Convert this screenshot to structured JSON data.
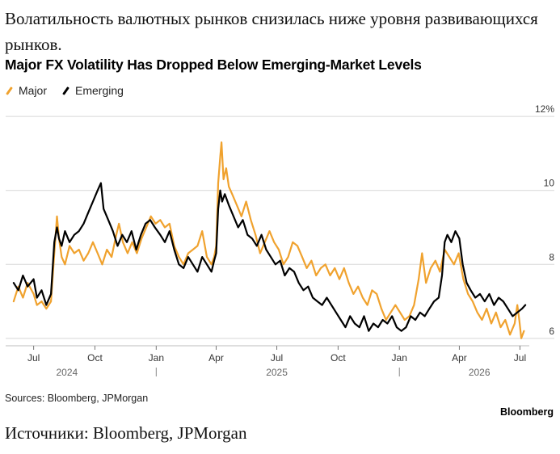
{
  "header": {
    "ru_title": "Волатильность валютных рынков снизилась ниже уровня развивающихся рынков.",
    "en_title": "Major FX Volatility Has Dropped Below Emerging-Market Levels"
  },
  "footer": {
    "sources": "Sources: Bloomberg, JPMorgan",
    "brand": "Bloomberg",
    "ru_sources": "Источники: Bloomberg, JPMorgan"
  },
  "colors": {
    "major": "#f0a22e",
    "emerging": "#000000",
    "grid": "#d7d7d7",
    "tick": "#333333"
  },
  "chart_data": {
    "type": "line",
    "title": "Major FX Volatility Has Dropped Below Emerging-Market Levels",
    "legend_position": "top-left",
    "grid": true,
    "y_unit": "%",
    "ylim": [
      5.8,
      12.2
    ],
    "xlim": [
      "2024-05-20",
      "2026-07-15"
    ],
    "y_ticks": [
      {
        "value": 6,
        "label": "6"
      },
      {
        "value": 8,
        "label": "8"
      },
      {
        "value": 10,
        "label": "10"
      },
      {
        "value": 12,
        "label": "12%"
      }
    ],
    "x_ticks": [
      {
        "date": "2024-07-01",
        "label": "Jul"
      },
      {
        "date": "2024-10-01",
        "label": "Oct"
      },
      {
        "date": "2025-01-01",
        "label": "Jan"
      },
      {
        "date": "2025-04-01",
        "label": "Apr"
      },
      {
        "date": "2025-07-01",
        "label": "Jul"
      },
      {
        "date": "2025-10-01",
        "label": "Oct"
      },
      {
        "date": "2026-01-01",
        "label": "Jan"
      },
      {
        "date": "2026-04-01",
        "label": "Apr"
      },
      {
        "date": "2026-07-01",
        "label": "Jul"
      }
    ],
    "year_labels": [
      {
        "date": "2024-08-20",
        "label": "2024"
      },
      {
        "date": "2025-07-01",
        "label": "2025"
      },
      {
        "date": "2026-05-01",
        "label": "2026"
      }
    ],
    "year_separators": [
      "2025-01-01",
      "2026-01-01"
    ],
    "series": [
      {
        "name": "Major",
        "color": "#f0a22e",
        "points": [
          [
            "2024-06-01",
            7.0
          ],
          [
            "2024-06-08",
            7.4
          ],
          [
            "2024-06-15",
            7.1
          ],
          [
            "2024-06-22",
            7.5
          ],
          [
            "2024-07-01",
            7.2
          ],
          [
            "2024-07-06",
            6.9
          ],
          [
            "2024-07-13",
            7.0
          ],
          [
            "2024-07-20",
            6.8
          ],
          [
            "2024-07-27",
            7.0
          ],
          [
            "2024-08-01",
            8.3
          ],
          [
            "2024-08-05",
            9.3
          ],
          [
            "2024-08-08",
            8.7
          ],
          [
            "2024-08-12",
            8.2
          ],
          [
            "2024-08-17",
            8.0
          ],
          [
            "2024-08-24",
            8.5
          ],
          [
            "2024-08-31",
            8.3
          ],
          [
            "2024-09-07",
            8.4
          ],
          [
            "2024-09-14",
            8.1
          ],
          [
            "2024-09-21",
            8.3
          ],
          [
            "2024-09-28",
            8.6
          ],
          [
            "2024-10-05",
            8.3
          ],
          [
            "2024-10-12",
            8.0
          ],
          [
            "2024-10-19",
            8.4
          ],
          [
            "2024-10-26",
            8.2
          ],
          [
            "2024-11-02",
            8.8
          ],
          [
            "2024-11-06",
            9.1
          ],
          [
            "2024-11-12",
            8.6
          ],
          [
            "2024-11-19",
            8.3
          ],
          [
            "2024-11-26",
            8.6
          ],
          [
            "2024-12-03",
            8.3
          ],
          [
            "2024-12-10",
            8.7
          ],
          [
            "2024-12-17",
            9.0
          ],
          [
            "2024-12-24",
            9.3
          ],
          [
            "2024-12-31",
            9.1
          ],
          [
            "2025-01-07",
            9.2
          ],
          [
            "2025-01-14",
            9.0
          ],
          [
            "2025-01-21",
            9.1
          ],
          [
            "2025-01-28",
            8.5
          ],
          [
            "2025-02-04",
            8.2
          ],
          [
            "2025-02-11",
            8.0
          ],
          [
            "2025-02-18",
            8.3
          ],
          [
            "2025-02-25",
            8.4
          ],
          [
            "2025-03-04",
            8.5
          ],
          [
            "2025-03-11",
            8.9
          ],
          [
            "2025-03-18",
            8.2
          ],
          [
            "2025-03-25",
            8.0
          ],
          [
            "2025-03-29",
            8.2
          ],
          [
            "2025-04-01",
            8.5
          ],
          [
            "2025-04-04",
            10.2
          ],
          [
            "2025-04-07",
            10.9
          ],
          [
            "2025-04-09",
            11.3
          ],
          [
            "2025-04-12",
            10.3
          ],
          [
            "2025-04-16",
            10.6
          ],
          [
            "2025-04-20",
            10.1
          ],
          [
            "2025-04-25",
            9.9
          ],
          [
            "2025-05-02",
            9.6
          ],
          [
            "2025-05-09",
            9.3
          ],
          [
            "2025-05-16",
            9.7
          ],
          [
            "2025-05-23",
            9.2
          ],
          [
            "2025-05-30",
            8.8
          ],
          [
            "2025-06-06",
            8.3
          ],
          [
            "2025-06-13",
            8.6
          ],
          [
            "2025-06-20",
            8.9
          ],
          [
            "2025-06-27",
            8.6
          ],
          [
            "2025-07-04",
            8.4
          ],
          [
            "2025-07-11",
            8.0
          ],
          [
            "2025-07-18",
            8.2
          ],
          [
            "2025-07-25",
            8.6
          ],
          [
            "2025-08-01",
            8.5
          ],
          [
            "2025-08-08",
            8.2
          ],
          [
            "2025-08-15",
            7.9
          ],
          [
            "2025-08-22",
            8.1
          ],
          [
            "2025-08-29",
            7.7
          ],
          [
            "2025-09-05",
            7.9
          ],
          [
            "2025-09-12",
            8.0
          ],
          [
            "2025-09-19",
            7.7
          ],
          [
            "2025-09-26",
            7.9
          ],
          [
            "2025-10-03",
            7.6
          ],
          [
            "2025-10-10",
            7.9
          ],
          [
            "2025-10-17",
            7.5
          ],
          [
            "2025-10-24",
            7.2
          ],
          [
            "2025-10-31",
            7.4
          ],
          [
            "2025-11-07",
            7.1
          ],
          [
            "2025-11-14",
            6.9
          ],
          [
            "2025-11-21",
            7.3
          ],
          [
            "2025-11-28",
            7.2
          ],
          [
            "2025-12-05",
            6.8
          ],
          [
            "2025-12-12",
            6.5
          ],
          [
            "2025-12-19",
            6.7
          ],
          [
            "2025-12-26",
            6.9
          ],
          [
            "2026-01-02",
            6.7
          ],
          [
            "2026-01-09",
            6.5
          ],
          [
            "2026-01-16",
            6.6
          ],
          [
            "2026-01-23",
            6.9
          ],
          [
            "2026-01-30",
            7.6
          ],
          [
            "2026-02-04",
            8.3
          ],
          [
            "2026-02-10",
            7.5
          ],
          [
            "2026-02-17",
            7.9
          ],
          [
            "2026-02-24",
            8.1
          ],
          [
            "2026-03-03",
            7.8
          ],
          [
            "2026-03-10",
            8.4
          ],
          [
            "2026-03-17",
            8.2
          ],
          [
            "2026-03-24",
            8.0
          ],
          [
            "2026-03-31",
            8.3
          ],
          [
            "2026-04-07",
            7.6
          ],
          [
            "2026-04-14",
            7.2
          ],
          [
            "2026-04-21",
            7.0
          ],
          [
            "2026-04-28",
            6.7
          ],
          [
            "2026-05-05",
            6.5
          ],
          [
            "2026-05-12",
            6.8
          ],
          [
            "2026-05-19",
            6.4
          ],
          [
            "2026-05-26",
            6.7
          ],
          [
            "2026-06-02",
            6.3
          ],
          [
            "2026-06-09",
            6.5
          ],
          [
            "2026-06-16",
            6.1
          ],
          [
            "2026-06-23",
            6.4
          ],
          [
            "2026-06-27",
            6.9
          ],
          [
            "2026-06-30",
            6.5
          ],
          [
            "2026-07-03",
            6.0
          ],
          [
            "2026-07-07",
            6.2
          ]
        ]
      },
      {
        "name": "Emerging",
        "color": "#000000",
        "points": [
          [
            "2024-06-01",
            7.5
          ],
          [
            "2024-06-08",
            7.3
          ],
          [
            "2024-06-15",
            7.7
          ],
          [
            "2024-06-22",
            7.4
          ],
          [
            "2024-07-01",
            7.6
          ],
          [
            "2024-07-06",
            7.1
          ],
          [
            "2024-07-13",
            7.3
          ],
          [
            "2024-07-20",
            6.9
          ],
          [
            "2024-07-27",
            7.2
          ],
          [
            "2024-08-01",
            8.6
          ],
          [
            "2024-08-05",
            9.0
          ],
          [
            "2024-08-08",
            8.7
          ],
          [
            "2024-08-12",
            8.5
          ],
          [
            "2024-08-17",
            8.9
          ],
          [
            "2024-08-24",
            8.6
          ],
          [
            "2024-08-31",
            8.8
          ],
          [
            "2024-09-07",
            8.9
          ],
          [
            "2024-09-14",
            9.1
          ],
          [
            "2024-09-21",
            9.4
          ],
          [
            "2024-09-28",
            9.7
          ],
          [
            "2024-10-05",
            10.0
          ],
          [
            "2024-10-10",
            10.2
          ],
          [
            "2024-10-14",
            9.5
          ],
          [
            "2024-10-21",
            9.2
          ],
          [
            "2024-10-28",
            8.9
          ],
          [
            "2024-11-04",
            8.5
          ],
          [
            "2024-11-11",
            8.8
          ],
          [
            "2024-11-18",
            8.6
          ],
          [
            "2024-11-25",
            8.9
          ],
          [
            "2024-12-02",
            8.4
          ],
          [
            "2024-12-09",
            8.8
          ],
          [
            "2024-12-16",
            9.1
          ],
          [
            "2024-12-23",
            9.2
          ],
          [
            "2024-12-30",
            9.0
          ],
          [
            "2025-01-07",
            8.8
          ],
          [
            "2025-01-14",
            8.6
          ],
          [
            "2025-01-21",
            8.9
          ],
          [
            "2025-01-28",
            8.4
          ],
          [
            "2025-02-04",
            8.0
          ],
          [
            "2025-02-11",
            7.9
          ],
          [
            "2025-02-18",
            8.2
          ],
          [
            "2025-02-25",
            8.0
          ],
          [
            "2025-03-04",
            7.8
          ],
          [
            "2025-03-11",
            8.2
          ],
          [
            "2025-03-18",
            8.0
          ],
          [
            "2025-03-25",
            7.8
          ],
          [
            "2025-03-29",
            8.1
          ],
          [
            "2025-04-01",
            8.3
          ],
          [
            "2025-04-04",
            9.5
          ],
          [
            "2025-04-07",
            10.0
          ],
          [
            "2025-04-10",
            9.7
          ],
          [
            "2025-04-14",
            9.9
          ],
          [
            "2025-04-20",
            9.6
          ],
          [
            "2025-04-27",
            9.3
          ],
          [
            "2025-05-04",
            9.0
          ],
          [
            "2025-05-11",
            9.2
          ],
          [
            "2025-05-18",
            8.8
          ],
          [
            "2025-05-25",
            8.7
          ],
          [
            "2025-06-01",
            8.5
          ],
          [
            "2025-06-08",
            8.8
          ],
          [
            "2025-06-15",
            8.4
          ],
          [
            "2025-06-22",
            8.2
          ],
          [
            "2025-06-29",
            8.0
          ],
          [
            "2025-07-06",
            8.1
          ],
          [
            "2025-07-13",
            7.7
          ],
          [
            "2025-07-20",
            7.9
          ],
          [
            "2025-07-27",
            7.8
          ],
          [
            "2025-08-03",
            7.5
          ],
          [
            "2025-08-10",
            7.3
          ],
          [
            "2025-08-17",
            7.4
          ],
          [
            "2025-08-24",
            7.1
          ],
          [
            "2025-08-31",
            7.0
          ],
          [
            "2025-09-07",
            6.9
          ],
          [
            "2025-09-14",
            7.1
          ],
          [
            "2025-09-21",
            6.9
          ],
          [
            "2025-09-28",
            6.7
          ],
          [
            "2025-10-05",
            6.5
          ],
          [
            "2025-10-12",
            6.3
          ],
          [
            "2025-10-19",
            6.6
          ],
          [
            "2025-10-26",
            6.4
          ],
          [
            "2025-11-02",
            6.3
          ],
          [
            "2025-11-09",
            6.6
          ],
          [
            "2025-11-16",
            6.2
          ],
          [
            "2025-11-23",
            6.4
          ],
          [
            "2025-11-30",
            6.3
          ],
          [
            "2025-12-07",
            6.5
          ],
          [
            "2025-12-14",
            6.4
          ],
          [
            "2025-12-21",
            6.6
          ],
          [
            "2025-12-28",
            6.3
          ],
          [
            "2026-01-04",
            6.2
          ],
          [
            "2026-01-11",
            6.3
          ],
          [
            "2026-01-18",
            6.6
          ],
          [
            "2026-01-25",
            6.5
          ],
          [
            "2026-02-01",
            6.7
          ],
          [
            "2026-02-08",
            6.6
          ],
          [
            "2026-02-15",
            6.8
          ],
          [
            "2026-02-22",
            7.0
          ],
          [
            "2026-03-01",
            7.1
          ],
          [
            "2026-03-06",
            7.7
          ],
          [
            "2026-03-10",
            8.6
          ],
          [
            "2026-03-14",
            8.8
          ],
          [
            "2026-03-20",
            8.6
          ],
          [
            "2026-03-26",
            8.9
          ],
          [
            "2026-04-01",
            8.7
          ],
          [
            "2026-04-06",
            8.0
          ],
          [
            "2026-04-12",
            7.5
          ],
          [
            "2026-04-18",
            7.3
          ],
          [
            "2026-04-25",
            7.1
          ],
          [
            "2026-05-02",
            7.2
          ],
          [
            "2026-05-09",
            7.0
          ],
          [
            "2026-05-16",
            7.2
          ],
          [
            "2026-05-23",
            6.9
          ],
          [
            "2026-05-30",
            7.1
          ],
          [
            "2026-06-06",
            7.0
          ],
          [
            "2026-06-13",
            6.8
          ],
          [
            "2026-06-20",
            6.6
          ],
          [
            "2026-06-27",
            6.7
          ],
          [
            "2026-07-04",
            6.8
          ],
          [
            "2026-07-09",
            6.9
          ]
        ]
      }
    ]
  }
}
